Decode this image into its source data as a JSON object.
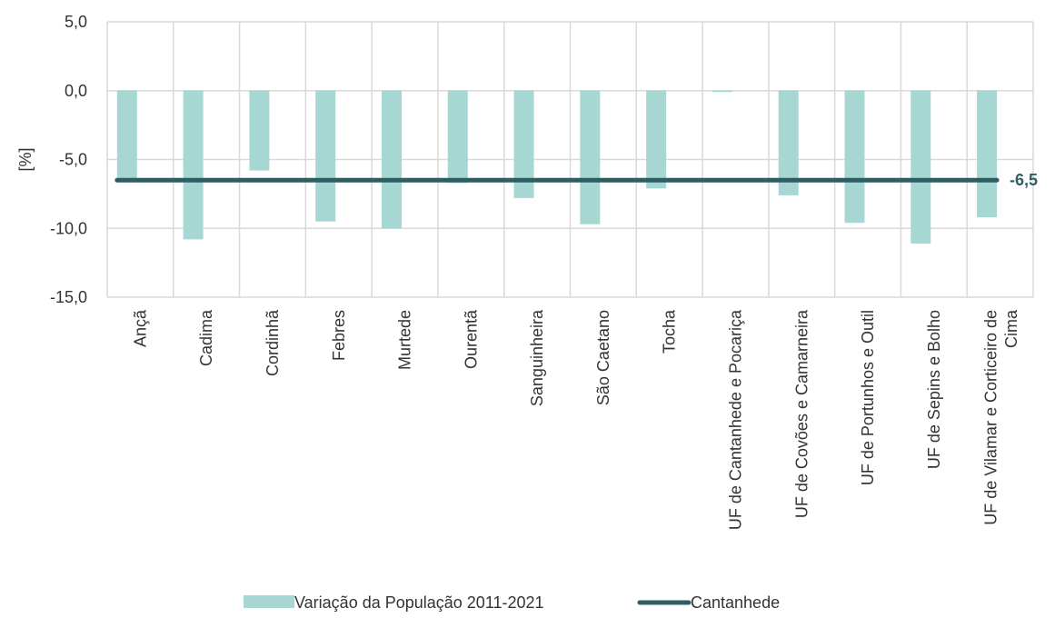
{
  "chart_data": {
    "type": "bar",
    "categories": [
      "Ançã",
      "Cadima",
      "Cordinhã",
      "Febres",
      "Murtede",
      "Ourentã",
      "Sanguinheira",
      "São Caetano",
      "Tocha",
      "UF de Cantanhede e Pocariça",
      "UF de Covões e Camarneira",
      "UF de Portunhos e Outil",
      "UF de Sepins e Bolho",
      "UF de Vilamar e Corticeiro de Cima"
    ],
    "series": [
      {
        "name": "Variação da População 2011-2021",
        "type": "bar",
        "values": [
          -6.6,
          -10.8,
          -5.8,
          -9.5,
          -10.0,
          -6.7,
          -7.8,
          -9.7,
          -7.1,
          -0.1,
          -7.6,
          -9.6,
          -11.1,
          -9.2
        ]
      },
      {
        "name": "Cantanhede",
        "type": "line",
        "values": [
          -6.5,
          -6.5,
          -6.5,
          -6.5,
          -6.5,
          -6.5,
          -6.5,
          -6.5,
          -6.5,
          -6.5,
          -6.5,
          -6.5,
          -6.5,
          -6.5
        ]
      }
    ],
    "line_end_label": "-6,5",
    "ylabel": "[%]",
    "ylim": [
      -15,
      5
    ],
    "yticks": [
      "5,0",
      "0,0",
      "-5,0",
      "-10,0",
      "-15,0"
    ],
    "ytick_values": [
      5,
      0,
      -5,
      -10,
      -15
    ],
    "grid": true,
    "legend_position": "bottom",
    "colors": {
      "bar": "#a7d7d3",
      "line": "#2e5e62",
      "grid": "#d9d9d9"
    }
  }
}
